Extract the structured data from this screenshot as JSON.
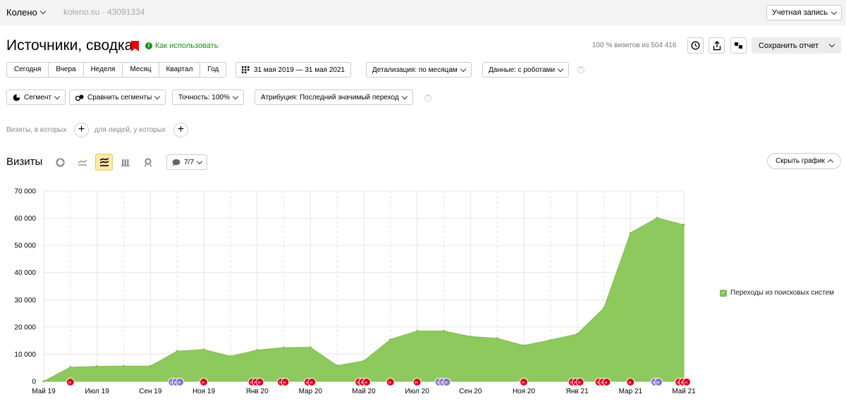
{
  "topbar": {
    "site_name": "Колено",
    "site_host": "koleno.su · 43091334",
    "account_label": "Учетная запись"
  },
  "header": {
    "title": "Источники, сводка",
    "howto_label": "Как использовать",
    "visits_total": "100 % визитов из 504 416",
    "save_label": "Сохранить отчет"
  },
  "periods": [
    "Сегодня",
    "Вчера",
    "Неделя",
    "Месяц",
    "Квартал",
    "Год"
  ],
  "controls": {
    "date_range": "31 мая 2019 — 31 мая 2021",
    "detail": "Детализация: по месяцам",
    "data": "Данные: с роботами",
    "segment": "Сегмент",
    "compare": "Сравнить сегменты",
    "accuracy": "Точность: 100%",
    "attribution": "Атрибуция: Последний значимый переход"
  },
  "filters": {
    "visits_where": "Визиты, в которых",
    "people_where": "для людей, у которых"
  },
  "chart_section": {
    "label": "Визиты",
    "notes_count": "7/7",
    "hide_label": "Скрыть график"
  },
  "colors": {
    "area": "#8ec95e",
    "legend": "#78c05a",
    "marker_red": "#d9001b",
    "marker_purple": "#8a72c8"
  },
  "chart_data": {
    "type": "area",
    "title": "",
    "xlabel": "",
    "ylabel": "",
    "ylim": [
      0,
      70000
    ],
    "yticks": [
      "0",
      "10 000",
      "20 000",
      "30 000",
      "40 000",
      "50 000",
      "60 000",
      "70 000"
    ],
    "tick_values": [
      0,
      10000,
      20000,
      30000,
      40000,
      50000,
      60000,
      70000
    ],
    "xticks": [
      "Май 19",
      "Июл 19",
      "Сен 19",
      "Ноя 19",
      "Янв 20",
      "Мар 20",
      "Май 20",
      "Июл 20",
      "Сен 20",
      "Ноя 20",
      "Янв 21",
      "Мар 21",
      "Май 21"
    ],
    "grid": true,
    "legend_position": "right",
    "series": [
      {
        "name": "Переходы из поисковых систем",
        "x": [
          "2019-05",
          "2019-06",
          "2019-07",
          "2019-08",
          "2019-09",
          "2019-10",
          "2019-11",
          "2019-12",
          "2020-01",
          "2020-02",
          "2020-03",
          "2020-04",
          "2020-05",
          "2020-06",
          "2020-07",
          "2020-08",
          "2020-09",
          "2020-10",
          "2020-11",
          "2020-12",
          "2021-01",
          "2021-02",
          "2021-03",
          "2021-04",
          "2021-05"
        ],
        "values": [
          0,
          5200,
          5500,
          5600,
          5600,
          11100,
          11700,
          9200,
          11500,
          12400,
          12500,
          5800,
          7500,
          15400,
          18500,
          18500,
          16500,
          15800,
          13200,
          15200,
          17400,
          26900,
          54600,
          60100,
          57600
        ]
      }
    ],
    "annotations": [
      {
        "month": "2019-06",
        "labels": [
          "н"
        ],
        "color": "red"
      },
      {
        "month": "2019-10",
        "labels": [
          "м",
          "м",
          "м"
        ],
        "color": "purple"
      },
      {
        "month": "2019-11",
        "labels": [
          "н"
        ],
        "color": "red"
      },
      {
        "month": "2020-01",
        "labels": [
          "н",
          "н",
          "н"
        ],
        "color": "red"
      },
      {
        "month": "2020-02",
        "labels": [
          "н",
          "н"
        ],
        "color": "red"
      },
      {
        "month": "2020-03",
        "labels": [
          "н",
          "н"
        ],
        "color": "red"
      },
      {
        "month": "2020-05",
        "labels": [
          "н",
          "н",
          "н"
        ],
        "color": "red"
      },
      {
        "month": "2020-06",
        "labels": [
          "н"
        ],
        "color": "red"
      },
      {
        "month": "2020-07",
        "labels": [
          "н"
        ],
        "color": "red"
      },
      {
        "month": "2020-08",
        "labels": [
          "м",
          "м",
          "м"
        ],
        "color": "purple"
      },
      {
        "month": "2020-11",
        "labels": [
          "н"
        ],
        "color": "red"
      },
      {
        "month": "2021-01",
        "labels": [
          "н",
          "н",
          "н"
        ],
        "color": "red"
      },
      {
        "month": "2021-02",
        "labels": [
          "н",
          "н",
          "н"
        ],
        "color": "red"
      },
      {
        "month": "2021-03",
        "labels": [
          "н"
        ],
        "color": "red"
      },
      {
        "month": "2021-04",
        "labels": [
          "м",
          "м"
        ],
        "color": "purple"
      },
      {
        "month": "2021-05",
        "labels": [
          "н",
          "н",
          "н"
        ],
        "color": "red"
      }
    ]
  }
}
